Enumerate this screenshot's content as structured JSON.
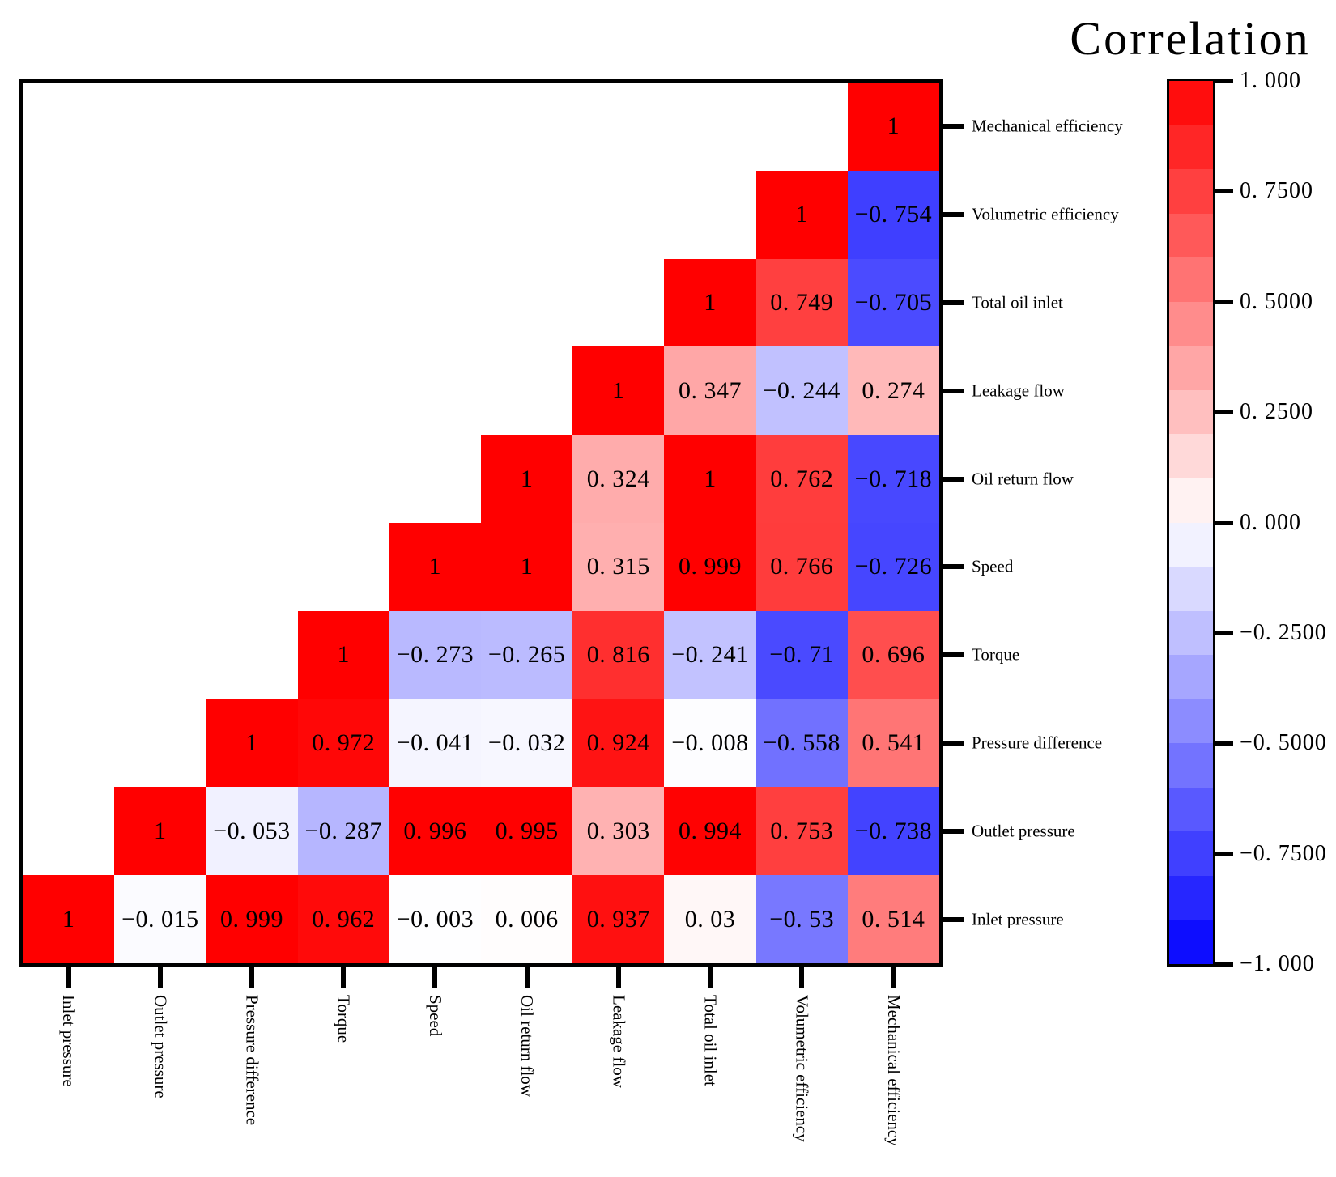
{
  "chart_data": {
    "type": "heatmap",
    "title": "Correlation",
    "layout": "lower-left empty, cells shown from diagonal to right edge of each row",
    "x_labels_left_to_right": [
      "Inlet pressure",
      "Outlet pressure",
      "Pressure difference",
      "Torque",
      "Speed",
      "Oil return flow",
      "Leakage flow",
      "Total oil inlet",
      "Volumetric efficiency",
      "Mechanical efficiency"
    ],
    "y_labels_top_to_bottom": [
      "Mechanical efficiency",
      "Volumetric efficiency",
      "Total oil inlet",
      "Leakage flow",
      "Oil return flow",
      "Speed",
      "Torque",
      "Pressure difference",
      "Outlet pressure",
      "Inlet pressure"
    ],
    "rows": [
      {
        "label": "Mechanical efficiency",
        "values": [
          1
        ]
      },
      {
        "label": "Volumetric efficiency",
        "values": [
          1,
          -0.754
        ]
      },
      {
        "label": "Total oil inlet",
        "values": [
          1,
          0.749,
          -0.705
        ]
      },
      {
        "label": "Leakage flow",
        "values": [
          1,
          0.347,
          -0.244,
          0.274
        ]
      },
      {
        "label": "Oil return flow",
        "values": [
          1,
          0.324,
          1,
          0.762,
          -0.718
        ]
      },
      {
        "label": "Speed",
        "values": [
          1,
          1,
          0.315,
          0.999,
          0.766,
          -0.726
        ]
      },
      {
        "label": "Torque",
        "values": [
          1,
          -0.273,
          -0.265,
          0.816,
          -0.241,
          -0.71,
          0.696
        ]
      },
      {
        "label": "Pressure difference",
        "values": [
          1,
          0.972,
          -0.041,
          -0.032,
          0.924,
          -0.008,
          -0.558,
          0.541
        ]
      },
      {
        "label": "Outlet pressure",
        "values": [
          1,
          -0.053,
          -0.287,
          0.996,
          0.995,
          0.303,
          0.994,
          0.753,
          -0.738
        ]
      },
      {
        "label": "Inlet pressure",
        "values": [
          1,
          -0.015,
          0.999,
          0.962,
          -0.003,
          0.006,
          0.937,
          0.03,
          -0.53,
          0.514
        ]
      }
    ],
    "value_range": [
      -1,
      1
    ],
    "grid": false,
    "colorbar": {
      "title": "Correlation",
      "position": "right",
      "min": -1,
      "max": 1,
      "levels": 20,
      "max_color": "#FF0000",
      "mid_color": "#FFFFFF",
      "min_color": "#0000FF",
      "ticks": [
        {
          "value": 1,
          "label": "1. 000"
        },
        {
          "value": 0.75,
          "label": "0. 7500"
        },
        {
          "value": 0.5,
          "label": "0. 5000"
        },
        {
          "value": 0.25,
          "label": "0. 2500"
        },
        {
          "value": 0,
          "label": "0. 000"
        },
        {
          "value": -0.25,
          "label": "−0. 2500"
        },
        {
          "value": -0.5,
          "label": "−0. 5000"
        },
        {
          "value": -0.75,
          "label": "−0. 7500"
        },
        {
          "value": -1,
          "label": "−1. 000"
        }
      ]
    }
  }
}
